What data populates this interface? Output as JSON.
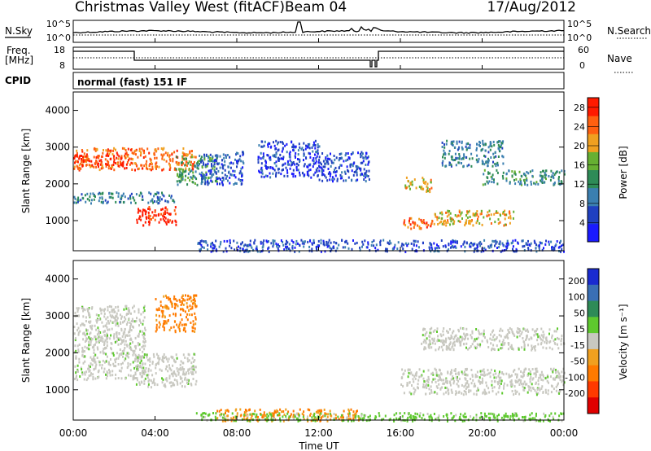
{
  "header": {
    "title": "Christmas Valley West (fitACF)",
    "beam": "Beam 04",
    "date": "17/Aug/2012"
  },
  "noise_panel": {
    "left_label": "N.Sky",
    "right_label": "N.Search",
    "left_ticks": [
      "10^5",
      "10^0"
    ],
    "right_ticks": [
      "10^5",
      "10^0"
    ]
  },
  "freq_panel": {
    "left_label_1": "Freq.",
    "left_label_2": "[MHz]",
    "right_label": "Nave",
    "left_ticks": [
      "18",
      "8"
    ],
    "right_ticks": [
      "60",
      "0"
    ]
  },
  "cpid_panel": {
    "label": "CPID",
    "text": "normal (fast) 151 IF"
  },
  "power_panel": {
    "ylabel": "Slant Range [km]",
    "cb_label": "Power [dB]",
    "yticks": [
      "4000",
      "3000",
      "2000",
      "1000"
    ]
  },
  "velocity_panel": {
    "ylabel": "Slant Range [km]",
    "cb_label": "Velocity [m s⁻¹]",
    "yticks": [
      "4000",
      "3000",
      "2000",
      "1000"
    ]
  },
  "xlabel": "Time UT",
  "chart_data": {
    "type": "heatmap",
    "x_ticks": [
      "00:00",
      "04:00",
      "08:00",
      "12:00",
      "16:00",
      "20:00",
      "00:00"
    ],
    "x_range_hours": [
      0,
      24
    ],
    "y_range_km": [
      180,
      4500
    ],
    "power_colorbar": {
      "ticks": [
        4,
        8,
        12,
        16,
        20,
        24,
        28
      ],
      "range": [
        0,
        30
      ],
      "colors": [
        "#1a1aff",
        "#2040c0",
        "#3b7fb0",
        "#2e8b57",
        "#66b032",
        "#f0a020",
        "#ff6010",
        "#ff1a00"
      ]
    },
    "velocity_colorbar": {
      "ticks": [
        200,
        100,
        50,
        15,
        -15,
        -50,
        -100,
        -200
      ],
      "colors": [
        "#1a2bd0",
        "#3a6fb5",
        "#2e8b57",
        "#5ec92e",
        "#c8c8c0",
        "#f0a020",
        "#ff7a00",
        "#ff3a00",
        "#e00000"
      ]
    },
    "power_regions": [
      {
        "t": [
          0.0,
          6.0
        ],
        "r": [
          2400,
          3000
        ],
        "level": 24
      },
      {
        "t": [
          0.0,
          2.5
        ],
        "r": [
          2500,
          2800
        ],
        "level": 28
      },
      {
        "t": [
          3.0,
          5.0
        ],
        "r": [
          900,
          1400
        ],
        "level": 28
      },
      {
        "t": [
          0.0,
          5.0
        ],
        "r": [
          1500,
          1800
        ],
        "level": 10
      },
      {
        "t": [
          5.0,
          7.0
        ],
        "r": [
          2000,
          2800
        ],
        "level": 14
      },
      {
        "t": [
          6.2,
          8.3
        ],
        "r": [
          2000,
          2900
        ],
        "level": 6
      },
      {
        "t": [
          9.0,
          12.0
        ],
        "r": [
          2200,
          3200
        ],
        "level": 5
      },
      {
        "t": [
          12.0,
          14.5
        ],
        "r": [
          2100,
          2900
        ],
        "level": 6
      },
      {
        "t": [
          16.2,
          17.5
        ],
        "r": [
          1800,
          2200
        ],
        "level": 20
      },
      {
        "t": [
          17.5,
          21.5
        ],
        "r": [
          900,
          1300
        ],
        "level": 20
      },
      {
        "t": [
          16.0,
          17.5
        ],
        "r": [
          800,
          1100
        ],
        "level": 25
      },
      {
        "t": [
          20.0,
          24.0
        ],
        "r": [
          2000,
          2400
        ],
        "level": 12
      },
      {
        "t": [
          18.0,
          21.0
        ],
        "r": [
          2500,
          3200
        ],
        "level": 10
      },
      {
        "t": [
          6.0,
          24.0
        ],
        "r": [
          180,
          500
        ],
        "level": 6
      }
    ],
    "velocity_regions": [
      {
        "t": [
          0.0,
          3.5
        ],
        "r": [
          1300,
          3300
        ],
        "v": 0
      },
      {
        "t": [
          4.0,
          6.0
        ],
        "r": [
          2600,
          3600
        ],
        "v": -60
      },
      {
        "t": [
          3.0,
          6.0
        ],
        "r": [
          1100,
          2000
        ],
        "v": 0
      },
      {
        "t": [
          16.0,
          24.0
        ],
        "r": [
          900,
          1600
        ],
        "v": 0
      },
      {
        "t": [
          17.0,
          24.0
        ],
        "r": [
          2100,
          2700
        ],
        "v": 0
      },
      {
        "t": [
          7.0,
          14.0
        ],
        "r": [
          180,
          500
        ],
        "v": -50
      },
      {
        "t": [
          6.0,
          24.0
        ],
        "r": [
          180,
          400
        ],
        "v": 30
      }
    ]
  }
}
